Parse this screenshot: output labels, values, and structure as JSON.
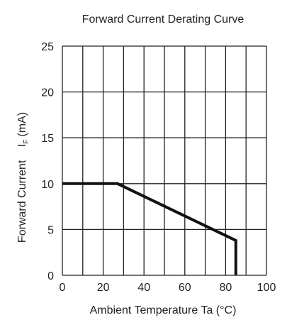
{
  "chart_data": {
    "type": "line",
    "title": "Forward Current Derating Curve",
    "xlabel": "Ambient Temperature Ta (°C)",
    "ylabel": {
      "main": "Forward Current",
      "symbol": "I",
      "subscript": "F",
      "unit": "(mA)"
    },
    "xlim": [
      0,
      100
    ],
    "ylim": [
      0,
      25
    ],
    "xticks": [
      0,
      20,
      40,
      60,
      80,
      100
    ],
    "yticks": [
      0,
      5,
      10,
      15,
      20,
      25
    ],
    "x_grid_step": 10,
    "y_grid_step": 5,
    "grid": true,
    "legend": "none",
    "series": [
      {
        "x": [
          0,
          27,
          85,
          85
        ],
        "y": [
          10,
          10,
          3.8,
          0
        ]
      }
    ],
    "colors": {
      "line": "#111111",
      "grid": "#222222",
      "text": "#222222"
    }
  }
}
